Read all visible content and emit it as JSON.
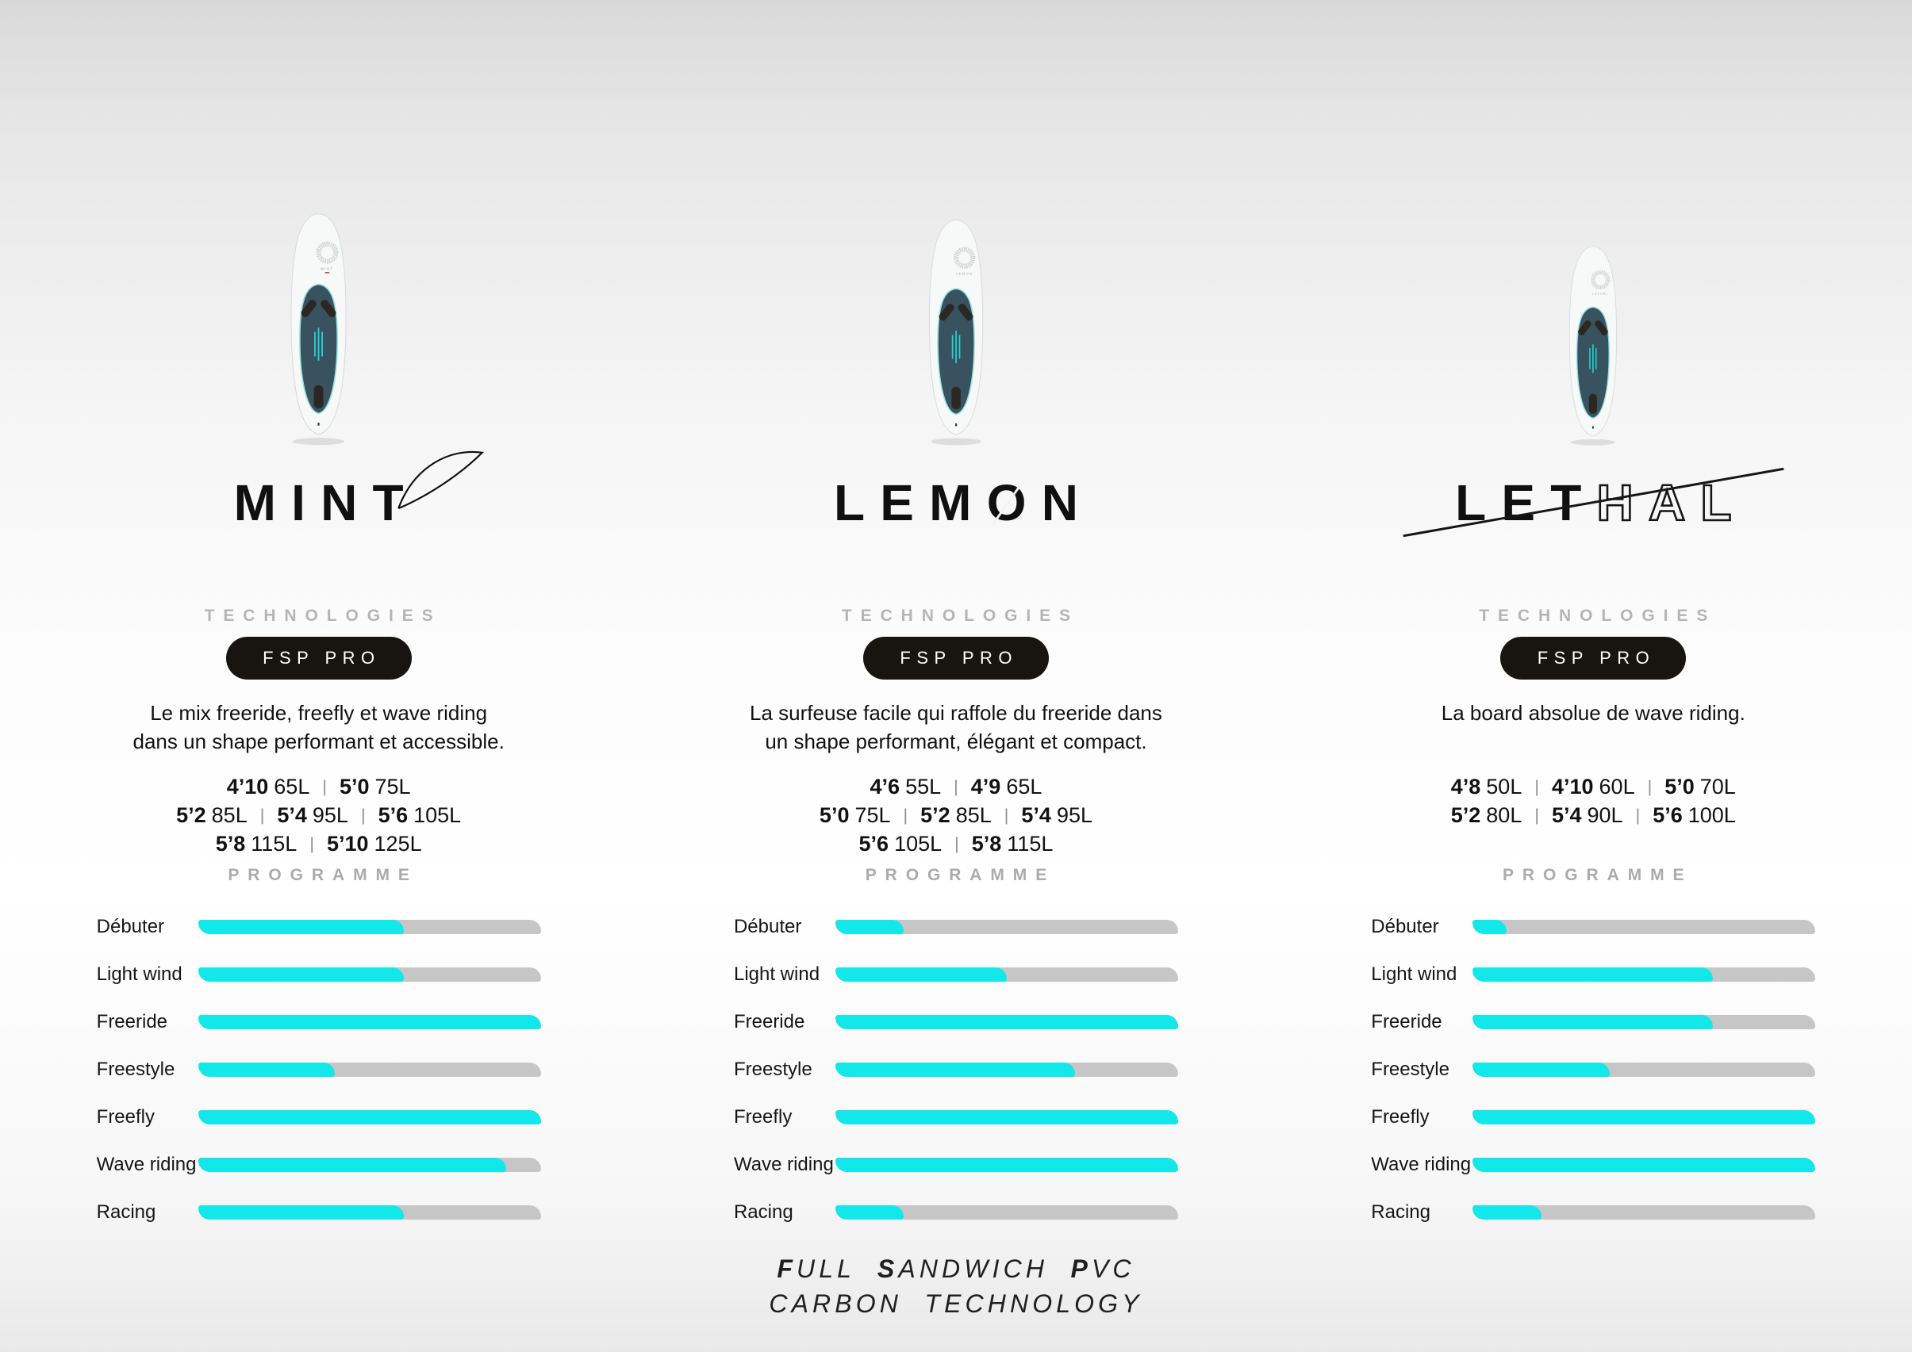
{
  "page": {
    "tech_label": "TECHNOLOGIES",
    "badge_label": "FSP PRO",
    "programme_label": "PROGRAMME",
    "categories": [
      "Débuter",
      "Light wind",
      "Freeride",
      "Freestyle",
      "Freefly",
      "Wave riding",
      "Racing"
    ],
    "footer_line1": [
      {
        "t": "F",
        "bold": true
      },
      {
        "t": "ULL ",
        "bold": false
      },
      {
        "t": "S",
        "bold": true
      },
      {
        "t": "ANDWICH ",
        "bold": false
      },
      {
        "t": "P",
        "bold": true
      },
      {
        "t": "VC",
        "bold": false
      }
    ],
    "footer_line2": "CARBON TECHNOLOGY",
    "colors": {
      "accent": "#12E7EA",
      "track": "#C6C6C6",
      "badge_bg": "#18140F",
      "tech_gray": "#B5B5B5"
    }
  },
  "boards": [
    {
      "name": "MINT",
      "description": [
        "Le mix freeride, freefly et wave riding",
        "dans un shape performant et accessible."
      ],
      "sizes": [
        [
          {
            "size": "4’10",
            "vol": "65L"
          },
          {
            "size": "5’0",
            "vol": "75L"
          }
        ],
        [
          {
            "size": "5’2",
            "vol": "85L"
          },
          {
            "size": "5’4",
            "vol": "95L"
          },
          {
            "size": "5’6",
            "vol": "105L"
          }
        ],
        [
          {
            "size": "5’8",
            "vol": "115L"
          },
          {
            "size": "5’10",
            "vol": "125L"
          }
        ]
      ],
      "ratings": [
        0.6,
        0.6,
        1,
        0.4,
        1,
        0.9,
        0.6
      ]
    },
    {
      "name": "LEMON",
      "name_pre": "LEM",
      "name_o": "O",
      "name_post": "N",
      "description": [
        "La surfeuse facile qui raffole du freeride dans",
        "un shape performant, élégant et compact."
      ],
      "sizes": [
        [
          {
            "size": "4’6",
            "vol": "55L"
          },
          {
            "size": "4’9",
            "vol": "65L"
          }
        ],
        [
          {
            "size": "5’0",
            "vol": "75L"
          },
          {
            "size": "5’2",
            "vol": "85L"
          },
          {
            "size": "5’4",
            "vol": "95L"
          }
        ],
        [
          {
            "size": "5’6",
            "vol": "105L"
          },
          {
            "size": "5’8",
            "vol": "115L"
          }
        ]
      ],
      "ratings": [
        0.2,
        0.5,
        1,
        0.7,
        1,
        1,
        0.2
      ]
    },
    {
      "name": "LETHAL",
      "name_solid": "LET",
      "name_outline": "HAL",
      "description": [
        "La board absolue de wave riding."
      ],
      "sizes": [
        [
          {
            "size": "4’8",
            "vol": "50L"
          },
          {
            "size": "4’10",
            "vol": "60L"
          },
          {
            "size": "5’0",
            "vol": "70L"
          }
        ],
        [
          {
            "size": "5’2",
            "vol": "80L"
          },
          {
            "size": "5’4",
            "vol": "90L"
          },
          {
            "size": "5’6",
            "vol": "100L"
          }
        ]
      ],
      "ratings": [
        0.1,
        0.7,
        0.7,
        0.4,
        1,
        1,
        0.2
      ]
    }
  ]
}
